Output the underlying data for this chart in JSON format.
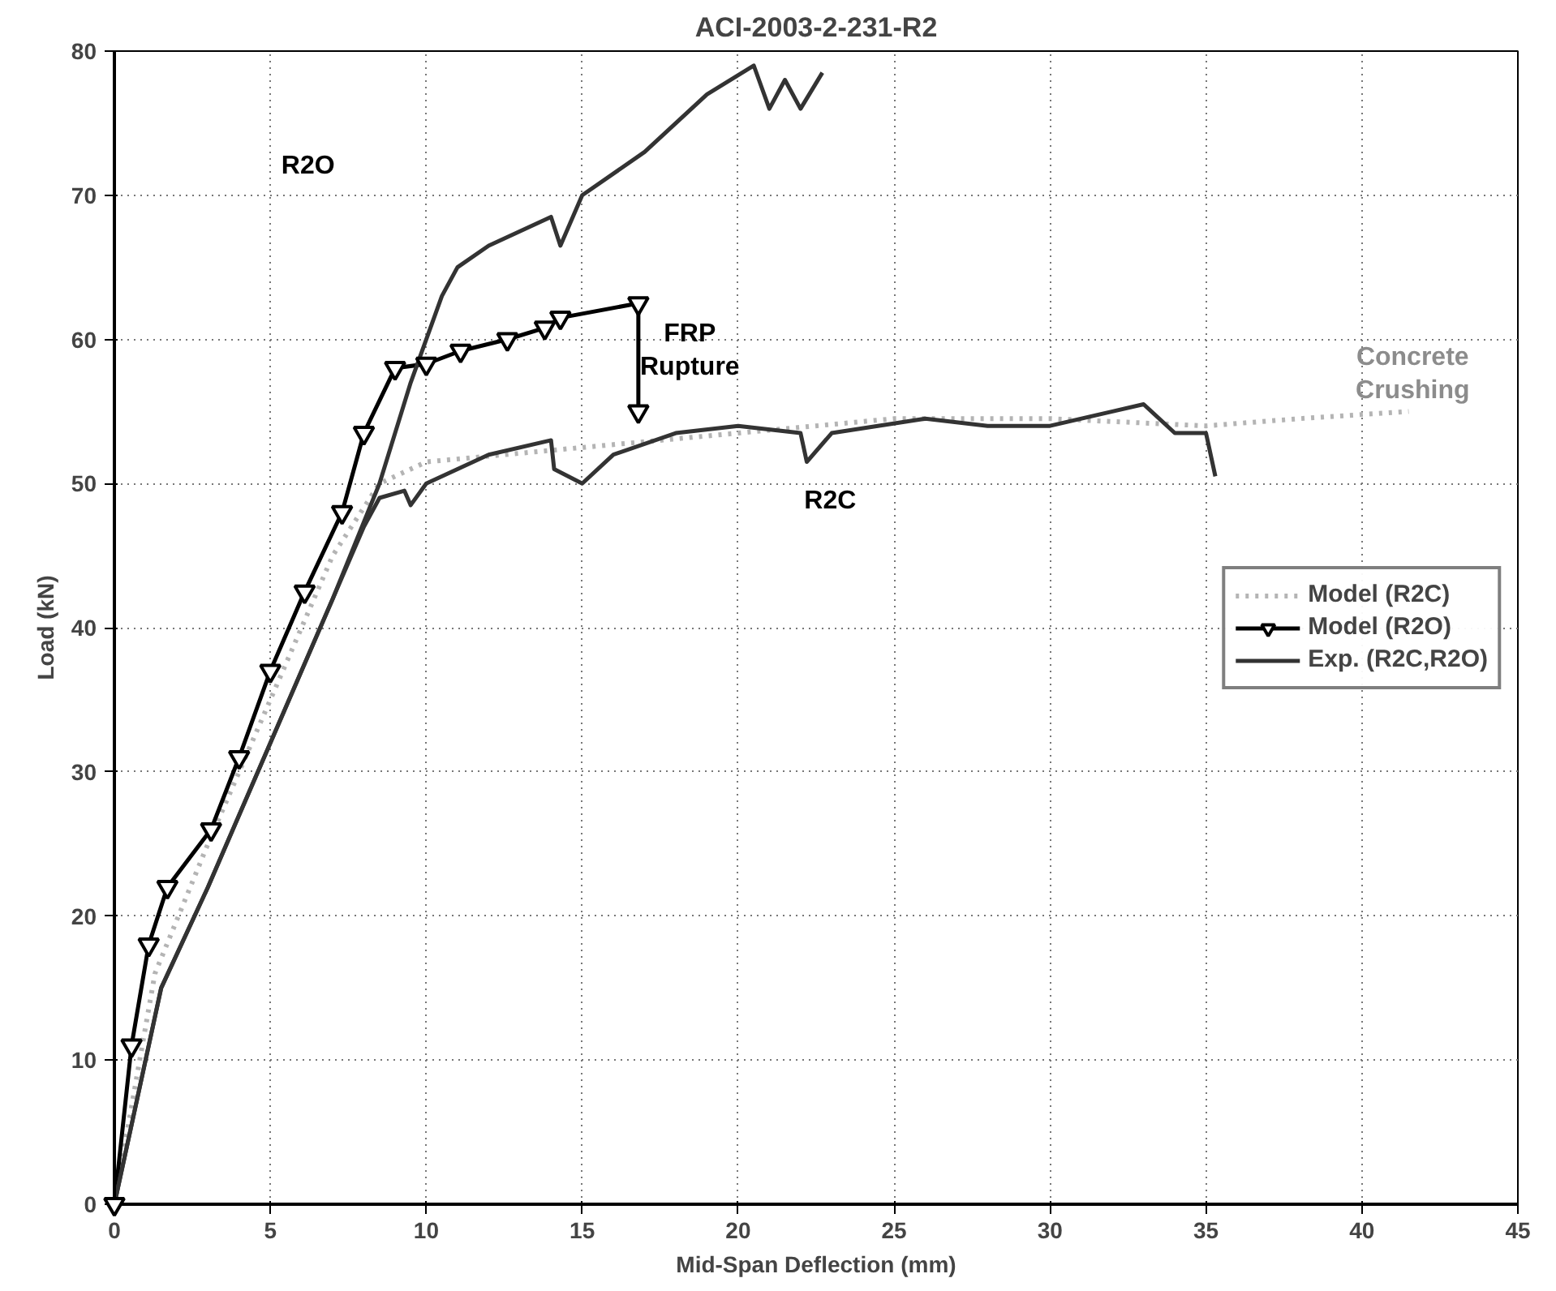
{
  "chart_data": {
    "type": "line",
    "title": "ACI-2003-2-231-R2",
    "xlabel": "Mid-Span Deflection (mm)",
    "ylabel": "Load (kN)",
    "xlim": [
      0,
      45
    ],
    "ylim": [
      0,
      80
    ],
    "xticks": [
      0,
      5,
      10,
      15,
      20,
      25,
      30,
      35,
      40,
      45
    ],
    "yticks": [
      0,
      10,
      20,
      30,
      40,
      50,
      60,
      70,
      80
    ],
    "grid": true,
    "legend": "right",
    "series": [
      {
        "name": "Model (R2C)",
        "color": "#b4b4b4",
        "line_style": "dotted",
        "marker": "none",
        "x": [
          0,
          1.3,
          3,
          5,
          7,
          8.5,
          10,
          15,
          20,
          25,
          30,
          35,
          38,
          41.5
        ],
        "values": [
          0,
          16,
          25,
          35,
          45,
          50,
          51.5,
          52.5,
          53.5,
          54.5,
          54.5,
          54,
          54.5,
          55
        ]
      },
      {
        "name": "Model (R2O)",
        "color": "#000000",
        "line_style": "solid",
        "marker": "triangle",
        "x": [
          0,
          0.55,
          1.1,
          1.7,
          3.1,
          4,
          5,
          6.1,
          7.3,
          8,
          9,
          10,
          11.1,
          12.6,
          13.8,
          14.3,
          16.8,
          16.8
        ],
        "values": [
          0,
          11,
          18,
          22,
          26,
          31,
          37,
          42.5,
          48,
          53.5,
          58,
          58.3,
          59.2,
          60,
          60.8,
          61.5,
          62.5,
          55
        ]
      },
      {
        "name": "Exp. (R2C,R2O)",
        "color": "#333333",
        "line_style": "solid",
        "marker": "none",
        "x": [
          0,
          1.5,
          3,
          5,
          7,
          8.5,
          9.5,
          10.5,
          11,
          12,
          13,
          14,
          14.3,
          15,
          17,
          19,
          20.5,
          21,
          21.5,
          22,
          22.7
        ],
        "values": [
          0,
          15,
          22,
          32,
          42,
          50,
          57,
          63,
          65,
          66.5,
          67.5,
          68.5,
          66.5,
          70,
          73,
          77,
          79,
          76,
          78,
          76,
          78.5
        ]
      },
      {
        "color": "#333333",
        "line_style": "solid",
        "marker": "none",
        "x": [
          0,
          1.5,
          3,
          5,
          7,
          8,
          8.5,
          9.3,
          9.5,
          10,
          12,
          14,
          14.1,
          15,
          16,
          18,
          20,
          22,
          22.2,
          23,
          26,
          28,
          30,
          32,
          33,
          34,
          35,
          35.3
        ],
        "values": [
          0,
          15,
          22,
          32,
          42,
          47,
          49,
          49.5,
          48.5,
          50,
          52,
          53,
          51,
          50,
          52,
          53.5,
          54,
          53.5,
          51.5,
          53.5,
          54.5,
          54,
          54,
          55,
          55.5,
          53.5,
          53.5,
          50.5
        ]
      }
    ],
    "annotations": [
      "R2O",
      "FRP\nRupture",
      "R2C",
      "Concrete\nCrushing"
    ]
  }
}
